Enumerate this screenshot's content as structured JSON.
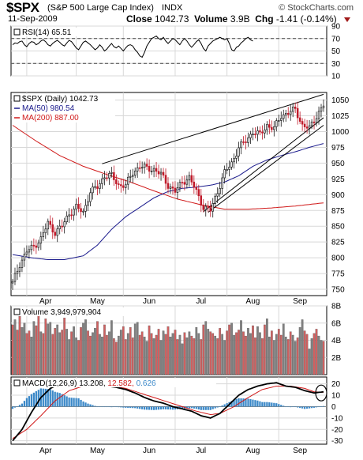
{
  "header": {
    "symbol": "$SPX",
    "name": "(S&P 500 Large Cap Index)",
    "exchange": "INDX",
    "brand": "© StockCharts.com",
    "date": "11-Sep-2009",
    "close_label": "Close",
    "close_value": "1042.73",
    "volume_label": "Volume",
    "volume_value": "3.9B",
    "chg_label": "Chg",
    "chg_value": "-1.41 (-0.14%)",
    "chg_direction": "down"
  },
  "colors": {
    "up_candle": "#1a1a1a",
    "down_candle": "#c01a2a",
    "ma50": "#1a1a8c",
    "ma200": "#d01818",
    "rsi": "#000000",
    "macd": "#000000",
    "macd_signal": "#d01818",
    "macd_hist": "#3a88c8",
    "volume_up": "#808080",
    "volume_down": "#d06060",
    "panel_border": "#000000",
    "grid": "#d8d8d8"
  },
  "chart_data": {
    "type": "candlestick",
    "x_months": [
      "Apr",
      "May",
      "Jun",
      "Jul",
      "Aug",
      "Sep"
    ],
    "panels": {
      "rsi": {
        "label": "RSI(14)",
        "last_value": "65.51",
        "yticks": [
          90,
          70,
          50,
          30,
          10
        ],
        "ylim": [
          10,
          90
        ],
        "bands": [
          70,
          30
        ],
        "values": [
          60,
          63,
          62,
          65,
          66,
          60,
          57,
          62,
          65,
          64,
          60,
          62,
          66,
          68,
          65,
          60,
          58,
          62,
          65,
          67,
          64,
          60,
          58,
          63,
          67,
          65,
          60,
          55,
          52,
          58,
          64,
          66,
          63,
          60,
          56,
          52,
          55,
          60,
          56,
          50,
          53,
          58,
          62,
          57,
          55,
          58,
          54,
          50,
          55,
          59,
          60,
          58,
          52,
          48,
          42,
          40,
          48,
          58,
          64,
          70,
          72,
          74,
          70,
          68,
          72,
          66,
          62,
          66,
          70,
          68,
          64,
          60,
          66,
          70,
          66,
          60,
          56,
          60,
          65,
          68,
          62,
          54,
          50,
          58,
          62,
          66,
          68,
          70,
          72,
          70,
          68,
          70,
          62,
          52,
          50,
          56,
          58,
          63,
          66,
          70,
          72,
          68,
          66
        ]
      },
      "price": {
        "label": "$SPX (Daily)",
        "last_value": "1042.73",
        "ma50_label": "MA(50)",
        "ma50_value": "980.54",
        "ma200_label": "MA(200)",
        "ma200_value": "887.00",
        "yticks": [
          1050,
          1025,
          1000,
          975,
          950,
          925,
          900,
          875,
          850,
          825,
          800,
          775,
          750
        ],
        "ylim": [
          740,
          1062
        ],
        "anchors": [
          [
            0,
            760
          ],
          [
            3,
            790
          ],
          [
            6,
            810
          ],
          [
            9,
            818
          ],
          [
            12,
            830
          ],
          [
            15,
            855
          ],
          [
            18,
            840
          ],
          [
            21,
            850
          ],
          [
            24,
            870
          ],
          [
            27,
            880
          ],
          [
            30,
            872
          ],
          [
            33,
            905
          ],
          [
            36,
            912
          ],
          [
            39,
            930
          ],
          [
            42,
            930
          ],
          [
            45,
            915
          ],
          [
            48,
            915
          ],
          [
            51,
            935
          ],
          [
            54,
            945
          ],
          [
            57,
            942
          ],
          [
            60,
            940
          ],
          [
            63,
            932
          ],
          [
            66,
            915
          ],
          [
            69,
            905
          ],
          [
            72,
            920
          ],
          [
            75,
            927
          ],
          [
            78,
            905
          ],
          [
            81,
            880
          ],
          [
            84,
            875
          ],
          [
            87,
            905
          ],
          [
            90,
            935
          ],
          [
            93,
            950
          ],
          [
            96,
            975
          ],
          [
            99,
            985
          ],
          [
            102,
            1000
          ],
          [
            105,
            995
          ],
          [
            108,
            1010
          ],
          [
            111,
            1005
          ],
          [
            114,
            1025
          ],
          [
            117,
            1030
          ],
          [
            120,
            1035
          ],
          [
            123,
            1010
          ],
          [
            126,
            1005
          ],
          [
            129,
            1025
          ],
          [
            132,
            1042
          ]
        ],
        "ma50": [
          [
            0,
            805
          ],
          [
            8,
            800
          ],
          [
            15,
            797
          ],
          [
            22,
            797
          ],
          [
            30,
            803
          ],
          [
            36,
            820
          ],
          [
            42,
            845
          ],
          [
            48,
            865
          ],
          [
            54,
            880
          ],
          [
            60,
            895
          ],
          [
            66,
            905
          ],
          [
            72,
            910
          ],
          [
            78,
            912
          ],
          [
            84,
            915
          ],
          [
            90,
            920
          ],
          [
            96,
            930
          ],
          [
            102,
            945
          ],
          [
            108,
            955
          ],
          [
            114,
            962
          ],
          [
            120,
            968
          ],
          [
            126,
            975
          ],
          [
            132,
            981
          ]
        ],
        "ma200": [
          [
            0,
            1010
          ],
          [
            10,
            985
          ],
          [
            20,
            962
          ],
          [
            30,
            945
          ],
          [
            40,
            932
          ],
          [
            50,
            920
          ],
          [
            60,
            906
          ],
          [
            70,
            893
          ],
          [
            80,
            884
          ],
          [
            90,
            877
          ],
          [
            100,
            877
          ],
          [
            110,
            879
          ],
          [
            120,
            882
          ],
          [
            132,
            887
          ]
        ],
        "trendlines": [
          [
            [
              38,
              949
            ],
            [
              132,
              1059
            ]
          ],
          [
            [
              81,
              873
            ],
            [
              132,
              1022
            ]
          ],
          [
            [
              83,
              872
            ],
            [
              132,
              1010
            ]
          ]
        ]
      },
      "volume": {
        "label": "Volume",
        "last_value": "3,949,979,904",
        "yticks": [
          "8B",
          "6B",
          "4B",
          "2B"
        ],
        "ylim_b": [
          0,
          8
        ],
        "values_b": [
          5.8,
          6.4,
          5.2,
          6.8,
          5.5,
          6.0,
          4.8,
          5.1,
          4.4,
          6.2,
          5.7,
          7.3,
          5.0,
          4.8,
          6.5,
          5.9,
          6.1,
          4.7,
          5.4,
          5.8,
          4.9,
          5.2,
          6.6,
          5.3,
          4.1,
          5.0,
          5.6,
          4.3,
          4.0,
          5.5,
          6.0,
          6.4,
          5.1,
          4.5,
          4.9,
          5.4,
          6.2,
          4.7,
          4.4,
          5.8,
          4.6,
          5.0,
          6.3,
          4.2,
          3.8,
          4.5,
          5.2,
          5.6,
          4.1,
          4.8,
          5.5,
          4.3,
          5.9,
          6.1,
          4.6,
          5.0,
          4.4,
          3.9,
          5.7,
          4.8,
          4.2,
          4.6,
          5.3,
          4.0,
          5.1,
          4.7,
          5.6,
          4.4,
          4.8,
          5.2,
          4.1,
          4.6,
          3.6,
          4.9,
          4.3,
          5.0,
          4.5,
          4.2,
          5.5,
          4.8,
          4.1,
          5.8,
          6.2,
          5.3,
          5.0,
          4.8,
          4.5,
          4.2,
          5.4,
          4.7,
          4.0,
          5.1,
          5.8,
          6.0,
          4.6,
          4.9,
          5.2,
          6.3,
          5.0,
          4.5,
          5.4,
          4.8,
          5.7,
          4.3,
          5.6,
          4.9,
          4.2,
          5.8,
          6.5,
          4.4,
          5.1,
          4.0,
          4.7,
          5.3,
          4.6,
          5.9,
          4.4,
          4.1,
          5.0,
          4.6,
          3.9,
          4.3,
          5.5,
          6.4,
          5.1,
          4.7,
          3.0,
          4.2,
          4.8,
          5.3,
          4.5,
          4.0,
          3.9
        ]
      },
      "macd": {
        "label": "MACD(12,26,9)",
        "macd_value": "13.208",
        "signal_value": "12.582",
        "hist_value": "0.626",
        "yticks": [
          20,
          10,
          0,
          -10,
          -20,
          -30
        ],
        "ylim": [
          -33,
          26
        ],
        "macd_line": [
          [
            0,
            -30
          ],
          [
            4,
            -20
          ],
          [
            8,
            -5
          ],
          [
            12,
            8
          ],
          [
            16,
            16
          ],
          [
            20,
            20
          ],
          [
            24,
            22
          ],
          [
            28,
            24
          ],
          [
            32,
            21
          ],
          [
            36,
            19
          ],
          [
            40,
            18
          ],
          [
            44,
            17
          ],
          [
            48,
            15
          ],
          [
            52,
            12
          ],
          [
            56,
            8
          ],
          [
            60,
            5
          ],
          [
            64,
            3
          ],
          [
            68,
            0
          ],
          [
            72,
            -2
          ],
          [
            76,
            -4
          ],
          [
            80,
            -8
          ],
          [
            84,
            -10
          ],
          [
            88,
            -6
          ],
          [
            92,
            2
          ],
          [
            96,
            10
          ],
          [
            100,
            15
          ],
          [
            104,
            18
          ],
          [
            108,
            20
          ],
          [
            112,
            21
          ],
          [
            116,
            18
          ],
          [
            120,
            17
          ],
          [
            124,
            14
          ],
          [
            128,
            12
          ],
          [
            132,
            13
          ]
        ],
        "signal_line": [
          [
            0,
            -28
          ],
          [
            6,
            -20
          ],
          [
            12,
            -8
          ],
          [
            18,
            5
          ],
          [
            24,
            14
          ],
          [
            30,
            18
          ],
          [
            36,
            19
          ],
          [
            42,
            18
          ],
          [
            48,
            16
          ],
          [
            54,
            12
          ],
          [
            60,
            8
          ],
          [
            66,
            4
          ],
          [
            72,
            0
          ],
          [
            78,
            -4
          ],
          [
            84,
            -7
          ],
          [
            88,
            -6
          ],
          [
            94,
            0
          ],
          [
            100,
            8
          ],
          [
            106,
            15
          ],
          [
            112,
            18
          ],
          [
            118,
            18
          ],
          [
            124,
            16
          ],
          [
            128,
            13
          ],
          [
            132,
            12.5
          ]
        ]
      }
    }
  }
}
